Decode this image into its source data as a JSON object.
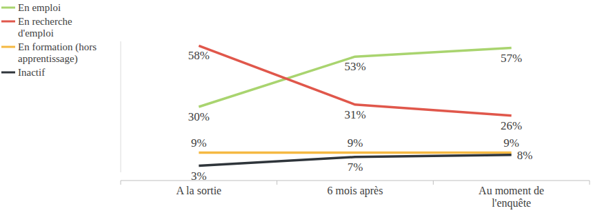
{
  "chart_data": {
    "type": "line",
    "categories": [
      "A la sortie",
      "6 mois après",
      "Au moment de l'enquête"
    ],
    "series": [
      {
        "name": "En emploi",
        "color": "#a9d46f",
        "values": [
          30,
          53,
          57
        ],
        "value_labels": [
          "30%",
          "53%",
          "57%"
        ]
      },
      {
        "name": "En recherche d'emploi",
        "color": "#e0574b",
        "values": [
          58,
          31,
          26
        ],
        "value_labels": [
          "58%",
          "31%",
          "26%"
        ]
      },
      {
        "name": "En formation (hors apprentissage)",
        "color": "#f5b942",
        "values": [
          9,
          9,
          9
        ],
        "value_labels": [
          "9%",
          "9%",
          "9%"
        ]
      },
      {
        "name": "Inactif",
        "color": "#2f353b",
        "values": [
          3,
          7,
          8
        ],
        "value_labels": [
          "3%",
          "7%",
          "8%"
        ]
      }
    ],
    "ylim": [
      0,
      60
    ],
    "data_labels": true,
    "tick_labels": "x",
    "legend": "top-left"
  }
}
